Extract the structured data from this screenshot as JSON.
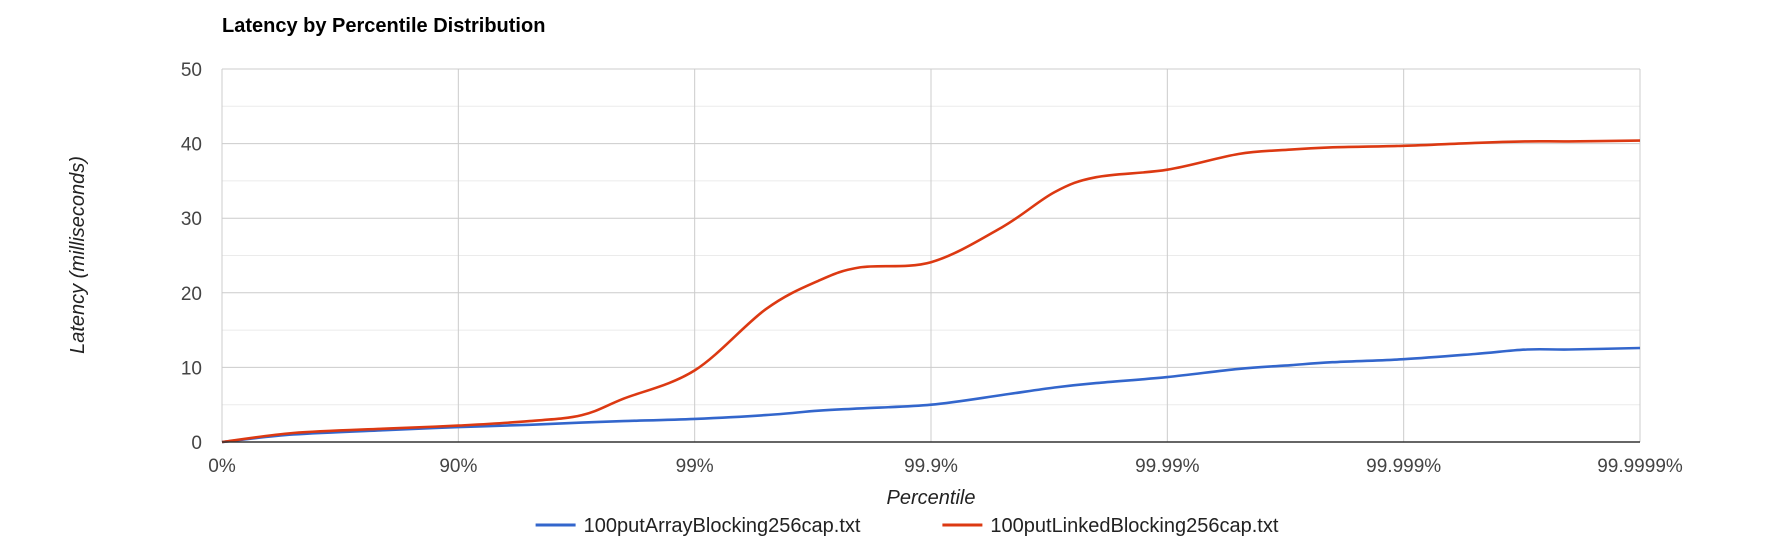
{
  "chart_data": {
    "type": "line",
    "title": "Latency by Percentile Distribution",
    "xlabel": "Percentile",
    "ylabel": "Latency (milliseconds)",
    "x_scale": "log_nines",
    "x_ticks": [
      "0%",
      "90%",
      "99%",
      "99.9%",
      "99.99%",
      "99.999%",
      "99.9999%"
    ],
    "x": [
      0,
      50,
      80,
      90,
      95,
      97,
      98,
      99,
      99.5,
      99.7,
      99.8,
      99.9,
      99.95,
      99.97,
      99.98,
      99.99,
      99.995,
      99.997,
      99.998,
      99.999,
      99.9995,
      99.9997,
      99.9998,
      99.9999
    ],
    "ylim": [
      0,
      50
    ],
    "y_ticks": [
      0,
      10,
      20,
      30,
      40,
      50
    ],
    "grid": true,
    "legend_position": "bottom",
    "series": [
      {
        "name": "100putArrayBlocking256cap.txt",
        "color": "#3366cc",
        "values": [
          0,
          1.0,
          1.6,
          2.0,
          2.3,
          2.6,
          2.8,
          3.1,
          3.6,
          4.2,
          4.5,
          5.0,
          6.3,
          7.3,
          7.9,
          8.7,
          9.8,
          10.3,
          10.7,
          11.1,
          11.8,
          12.4,
          12.4,
          12.6
        ]
      },
      {
        "name": "100putLinkedBlocking256cap.txt",
        "color": "#dc3912",
        "values": [
          0,
          1.2,
          1.8,
          2.2,
          2.8,
          3.6,
          5.8,
          9.6,
          17.8,
          21.6,
          23.4,
          24.1,
          28.8,
          33.5,
          35.5,
          36.5,
          38.6,
          39.2,
          39.5,
          39.7,
          40.1,
          40.3,
          40.3,
          40.4
        ]
      }
    ]
  }
}
